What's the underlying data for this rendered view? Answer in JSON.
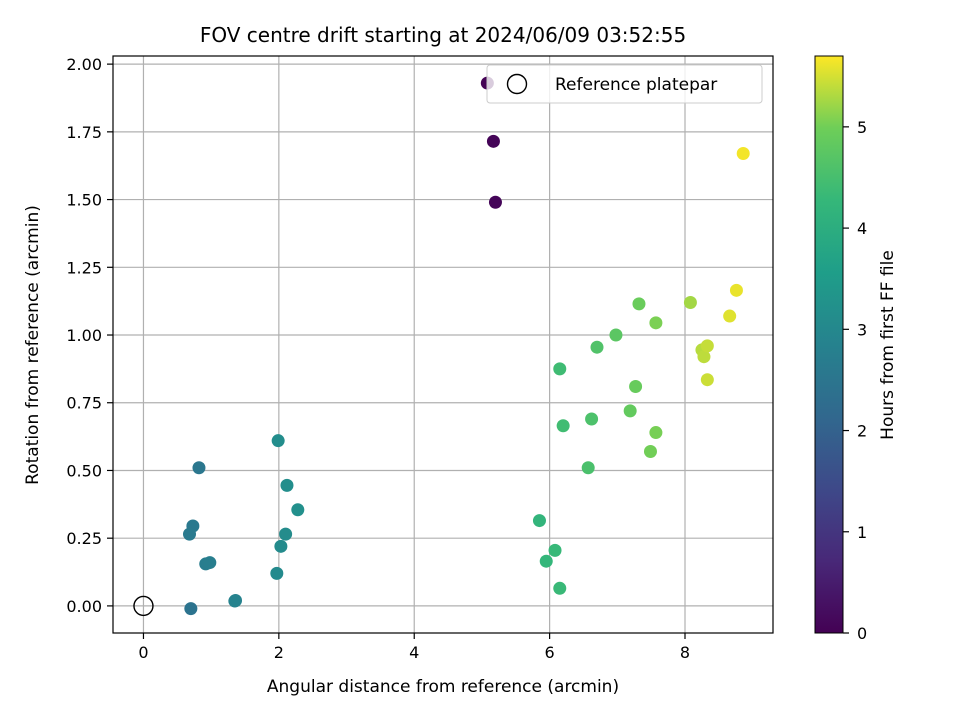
{
  "chart_data": {
    "type": "scatter",
    "title": "FOV centre drift starting at 2024/06/09 03:52:55",
    "xlabel": "Angular distance from reference (arcmin)",
    "ylabel": "Rotation from reference (arcmin)",
    "xlim": [
      -0.45,
      9.3
    ],
    "ylim": [
      -0.1,
      2.03
    ],
    "xticks": [
      0,
      2,
      4,
      6,
      8
    ],
    "yticks": [
      0.0,
      0.25,
      0.5,
      0.75,
      1.0,
      1.25,
      1.5,
      1.75,
      2.0
    ],
    "grid": true,
    "legend": {
      "label": "Reference platepar",
      "placement": "top-right"
    },
    "colorbar": {
      "label": "Hours from first FF file",
      "min": 0,
      "max": 5.7,
      "ticks": [
        0,
        1,
        2,
        3,
        4,
        5
      ],
      "colormap": "viridis"
    },
    "reference_point": {
      "x": 0,
      "y": 0
    },
    "points": [
      {
        "x": 5.08,
        "y": 1.93,
        "hours": 0.02
      },
      {
        "x": 5.17,
        "y": 1.715,
        "hours": 0.05
      },
      {
        "x": 5.2,
        "y": 1.49,
        "hours": 0.08
      },
      {
        "x": 0.82,
        "y": 0.51,
        "hours": 2.55
      },
      {
        "x": 0.73,
        "y": 0.295,
        "hours": 2.6
      },
      {
        "x": 0.68,
        "y": 0.265,
        "hours": 2.62
      },
      {
        "x": 0.7,
        "y": -0.01,
        "hours": 2.45
      },
      {
        "x": 0.92,
        "y": 0.155,
        "hours": 2.7
      },
      {
        "x": 0.98,
        "y": 0.16,
        "hours": 2.75
      },
      {
        "x": 1.36,
        "y": 0.02,
        "hours": 2.85
      },
      {
        "x": 1.35,
        "y": 0.018,
        "hours": 2.88
      },
      {
        "x": 1.97,
        "y": 0.12,
        "hours": 3.05
      },
      {
        "x": 2.03,
        "y": 0.22,
        "hours": 3.08
      },
      {
        "x": 2.1,
        "y": 0.265,
        "hours": 3.1
      },
      {
        "x": 1.99,
        "y": 0.61,
        "hours": 3.12
      },
      {
        "x": 2.12,
        "y": 0.445,
        "hours": 3.15
      },
      {
        "x": 2.28,
        "y": 0.355,
        "hours": 3.2
      },
      {
        "x": 5.85,
        "y": 0.315,
        "hours": 4.2
      },
      {
        "x": 5.95,
        "y": 0.165,
        "hours": 4.25
      },
      {
        "x": 6.08,
        "y": 0.205,
        "hours": 4.3
      },
      {
        "x": 6.15,
        "y": 0.065,
        "hours": 4.32
      },
      {
        "x": 6.15,
        "y": 0.875,
        "hours": 4.4
      },
      {
        "x": 6.2,
        "y": 0.665,
        "hours": 4.42
      },
      {
        "x": 6.57,
        "y": 0.51,
        "hours": 4.55
      },
      {
        "x": 6.62,
        "y": 0.69,
        "hours": 4.58
      },
      {
        "x": 6.7,
        "y": 0.955,
        "hours": 4.62
      },
      {
        "x": 6.98,
        "y": 1.0,
        "hours": 4.75
      },
      {
        "x": 7.19,
        "y": 0.72,
        "hours": 4.85
      },
      {
        "x": 7.27,
        "y": 0.81,
        "hours": 4.9
      },
      {
        "x": 7.32,
        "y": 1.115,
        "hours": 4.92
      },
      {
        "x": 7.49,
        "y": 0.57,
        "hours": 5.0
      },
      {
        "x": 7.57,
        "y": 0.64,
        "hours": 5.03
      },
      {
        "x": 7.57,
        "y": 1.045,
        "hours": 5.05
      },
      {
        "x": 8.08,
        "y": 1.12,
        "hours": 5.25
      },
      {
        "x": 8.25,
        "y": 0.945,
        "hours": 5.35
      },
      {
        "x": 8.28,
        "y": 0.92,
        "hours": 5.38
      },
      {
        "x": 8.33,
        "y": 0.96,
        "hours": 5.42
      },
      {
        "x": 8.33,
        "y": 0.835,
        "hours": 5.45
      },
      {
        "x": 8.66,
        "y": 1.07,
        "hours": 5.55
      },
      {
        "x": 8.76,
        "y": 1.165,
        "hours": 5.6
      },
      {
        "x": 8.86,
        "y": 1.67,
        "hours": 5.65
      }
    ]
  }
}
